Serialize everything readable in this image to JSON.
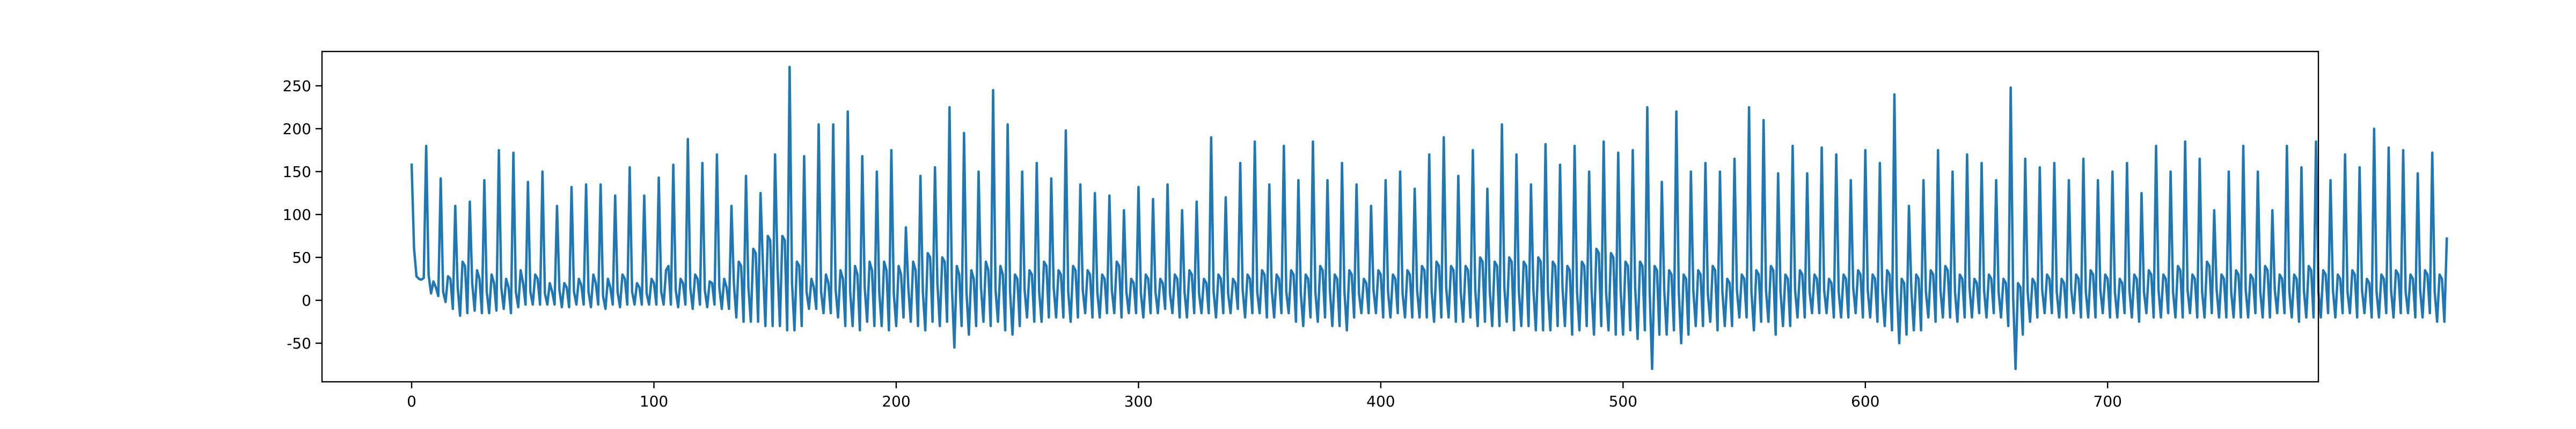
{
  "chart_data": {
    "type": "line",
    "title": "",
    "xlabel": "",
    "ylabel": "",
    "xlim": [
      -37,
      787
    ],
    "ylim": [
      -95,
      290
    ],
    "grid": false,
    "legend": "none",
    "x_ticks": [
      0,
      100,
      200,
      300,
      400,
      500,
      600,
      700
    ],
    "y_ticks": [
      -50,
      0,
      50,
      100,
      150,
      200,
      250
    ],
    "series": [
      {
        "color": "#1f77b4",
        "x_start": 0,
        "x_step": 1,
        "values": [
          158,
          60,
          28,
          25,
          24,
          26,
          180,
          30,
          8,
          22,
          15,
          5,
          142,
          10,
          -2,
          28,
          25,
          -10,
          110,
          15,
          -18,
          45,
          40,
          -15,
          115,
          20,
          -12,
          35,
          25,
          -15,
          140,
          10,
          -15,
          30,
          20,
          -12,
          175,
          15,
          -10,
          25,
          15,
          -15,
          172,
          10,
          -8,
          35,
          20,
          -5,
          138,
          10,
          -5,
          30,
          25,
          -5,
          150,
          8,
          -5,
          20,
          10,
          -5,
          110,
          12,
          -8,
          20,
          15,
          -8,
          132,
          10,
          -5,
          25,
          18,
          -5,
          135,
          10,
          -8,
          30,
          20,
          -5,
          135,
          5,
          -10,
          25,
          15,
          -5,
          122,
          10,
          -8,
          30,
          25,
          -5,
          155,
          10,
          -5,
          20,
          15,
          -5,
          122,
          8,
          -5,
          25,
          20,
          -5,
          143,
          10,
          -5,
          35,
          40,
          -5,
          158,
          12,
          -8,
          25,
          20,
          -5,
          188,
          15,
          -10,
          30,
          25,
          -5,
          160,
          12,
          -8,
          22,
          20,
          -5,
          170,
          15,
          -10,
          25,
          15,
          -10,
          110,
          20,
          -20,
          45,
          40,
          -25,
          145,
          15,
          -25,
          60,
          55,
          -25,
          125,
          40,
          -30,
          75,
          70,
          -30,
          170,
          40,
          -30,
          75,
          70,
          -35,
          272,
          20,
          -35,
          45,
          40,
          -30,
          168,
          10,
          -10,
          25,
          15,
          -10,
          205,
          10,
          -15,
          30,
          20,
          -15,
          205,
          12,
          -20,
          35,
          25,
          -30,
          220,
          10,
          -30,
          40,
          30,
          -35,
          168,
          15,
          -25,
          45,
          35,
          -30,
          150,
          10,
          -30,
          45,
          35,
          -35,
          175,
          8,
          -30,
          40,
          30,
          -20,
          85,
          15,
          -25,
          45,
          35,
          -30,
          145,
          10,
          -35,
          55,
          50,
          -25,
          155,
          20,
          -30,
          50,
          45,
          -25,
          225,
          15,
          -55,
          40,
          30,
          -30,
          195,
          10,
          -40,
          35,
          25,
          -30,
          150,
          15,
          -25,
          45,
          35,
          -30,
          245,
          12,
          -25,
          40,
          30,
          -35,
          205,
          10,
          -40,
          30,
          25,
          -30,
          150,
          12,
          -20,
          35,
          30,
          -25,
          160,
          10,
          -25,
          45,
          40,
          -20,
          142,
          15,
          -20,
          35,
          30,
          -20,
          198,
          10,
          -25,
          40,
          35,
          -20,
          135,
          12,
          -15,
          35,
          30,
          -20,
          125,
          10,
          -20,
          30,
          25,
          -15,
          122,
          12,
          -15,
          45,
          40,
          -20,
          105,
          10,
          -15,
          25,
          20,
          -15,
          132,
          8,
          -20,
          30,
          25,
          -15,
          118,
          10,
          -15,
          25,
          20,
          -10,
          135,
          8,
          -15,
          30,
          25,
          -20,
          105,
          10,
          -20,
          35,
          30,
          -15,
          115,
          8,
          -15,
          25,
          20,
          -15,
          190,
          10,
          -20,
          30,
          25,
          -15,
          120,
          8,
          -15,
          25,
          20,
          -10,
          160,
          12,
          -20,
          30,
          25,
          -15,
          185,
          10,
          -15,
          35,
          30,
          -20,
          135,
          12,
          -20,
          30,
          25,
          -15,
          180,
          10,
          -15,
          35,
          30,
          -25,
          140,
          8,
          -30,
          30,
          25,
          -20,
          185,
          10,
          -25,
          40,
          35,
          -20,
          140,
          12,
          -30,
          30,
          25,
          -30,
          160,
          10,
          -35,
          35,
          30,
          -20,
          135,
          8,
          -15,
          25,
          20,
          -15,
          110,
          12,
          -15,
          35,
          30,
          -20,
          140,
          10,
          -20,
          30,
          25,
          -15,
          150,
          8,
          -20,
          35,
          30,
          -20,
          130,
          12,
          -20,
          40,
          35,
          -20,
          170,
          10,
          -25,
          45,
          40,
          -20,
          190,
          15,
          -20,
          40,
          35,
          -25,
          145,
          10,
          -25,
          40,
          35,
          -20,
          175,
          12,
          -30,
          50,
          45,
          -25,
          130,
          10,
          -30,
          45,
          40,
          -30,
          205,
          15,
          -25,
          50,
          45,
          -35,
          170,
          10,
          -30,
          45,
          40,
          -30,
          135,
          12,
          -35,
          50,
          45,
          -35,
          182,
          10,
          -35,
          45,
          40,
          -30,
          158,
          15,
          -30,
          40,
          35,
          -40,
          180,
          10,
          -35,
          45,
          40,
          -30,
          150,
          12,
          -40,
          60,
          55,
          -30,
          185,
          10,
          -35,
          55,
          50,
          -40,
          172,
          12,
          -40,
          45,
          40,
          -35,
          175,
          15,
          -45,
          45,
          40,
          -35,
          225,
          10,
          -80,
          40,
          35,
          -40,
          138,
          12,
          -40,
          35,
          30,
          -35,
          220,
          10,
          -50,
          30,
          25,
          -40,
          150,
          12,
          -30,
          35,
          30,
          -30,
          160,
          8,
          -25,
          40,
          35,
          -35,
          150,
          10,
          -30,
          25,
          20,
          -30,
          165,
          12,
          -20,
          30,
          25,
          -20,
          225,
          10,
          -35,
          35,
          30,
          -25,
          210,
          12,
          -25,
          40,
          35,
          -40,
          148,
          10,
          -30,
          30,
          25,
          -30,
          180,
          12,
          -20,
          35,
          30,
          -20,
          148,
          10,
          -15,
          30,
          25,
          -15,
          178,
          12,
          -15,
          25,
          20,
          -20,
          170,
          10,
          -20,
          30,
          25,
          -20,
          140,
          15,
          -15,
          35,
          30,
          -20,
          175,
          12,
          -20,
          30,
          25,
          -25,
          160,
          10,
          -30,
          35,
          30,
          -35,
          240,
          15,
          -50,
          25,
          20,
          -40,
          110,
          12,
          -35,
          30,
          25,
          -35,
          140,
          10,
          -20,
          35,
          30,
          -25,
          175,
          12,
          -20,
          40,
          35,
          -20,
          150,
          10,
          -25,
          30,
          25,
          -20,
          170,
          15,
          -20,
          25,
          20,
          -15,
          160,
          12,
          -20,
          30,
          25,
          -15,
          140,
          10,
          -20,
          25,
          20,
          -30,
          248,
          5,
          -80,
          20,
          15,
          -40,
          165,
          10,
          -25,
          25,
          20,
          -20,
          155,
          12,
          -15,
          30,
          25,
          -15,
          160,
          10,
          -20,
          25,
          20,
          -20,
          140,
          12,
          -15,
          30,
          25,
          -20,
          165,
          10,
          -20,
          35,
          30,
          -20,
          140,
          12,
          -15,
          30,
          25,
          -20,
          150,
          10,
          -20,
          25,
          20,
          -15,
          160,
          12,
          -20,
          30,
          25,
          -25,
          125,
          10,
          -15,
          35,
          30,
          -20,
          180,
          12,
          -20,
          30,
          25,
          -15,
          150,
          10,
          -20,
          40,
          35,
          -20,
          185,
          12,
          -15,
          30,
          25,
          -20,
          165,
          10,
          -20,
          45,
          40,
          -15,
          105,
          12,
          -20,
          30,
          25,
          -20,
          150,
          10,
          -20,
          35,
          30,
          -20,
          180,
          12,
          -20,
          30,
          25,
          -15,
          150,
          10,
          -20,
          40,
          35,
          -20,
          105,
          12,
          -15,
          30,
          25,
          -15,
          180,
          10,
          -20,
          30,
          25,
          -25,
          155,
          12,
          -20,
          40,
          35,
          -20,
          185,
          10,
          -20,
          35,
          30,
          -15,
          140,
          12,
          -20,
          30,
          25,
          -15,
          170,
          10,
          -15,
          35,
          30,
          -20,
          155,
          12,
          -15,
          25,
          20,
          -20,
          200,
          10,
          -20,
          30,
          25,
          -15,
          178,
          12,
          -20,
          35,
          30,
          -15,
          175,
          10,
          -15,
          30,
          25,
          -20,
          148,
          12,
          -20,
          35,
          30,
          -15,
          172,
          10,
          -25,
          30,
          25,
          -25,
          72
        ]
      }
    ]
  }
}
